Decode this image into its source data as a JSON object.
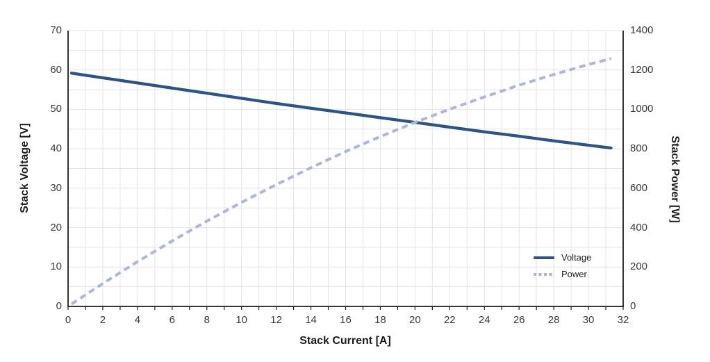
{
  "chart_data": {
    "type": "line",
    "title": "",
    "xlabel": "Stack Current [A]",
    "ylabel_left": "Stack Voltage [V]",
    "ylabel_right": "Stack Power [W]",
    "xlim": [
      0,
      32
    ],
    "xticks": [
      0,
      2,
      4,
      6,
      8,
      10,
      12,
      14,
      16,
      18,
      20,
      22,
      24,
      26,
      28,
      30,
      32
    ],
    "x_minor_grid_step": 1,
    "ylim_left": [
      0,
      70
    ],
    "yticks_left": [
      0,
      10,
      20,
      30,
      40,
      50,
      60,
      70
    ],
    "y_left_minor_grid_step": 5,
    "ylim_right": [
      0,
      1400
    ],
    "yticks_right": [
      0,
      200,
      400,
      600,
      800,
      1000,
      1200,
      1400
    ],
    "grid": true,
    "legend_position": "lower-right-inside",
    "x": [
      0.2,
      2,
      4,
      6,
      8,
      10,
      12,
      14,
      16,
      18,
      20,
      22,
      24,
      26,
      28,
      30,
      31.3
    ],
    "series": [
      {
        "name": "Voltage",
        "axis": "left",
        "line_style": "solid",
        "color": "#2e5389",
        "values": [
          59.2,
          58.0,
          56.7,
          55.4,
          54.1,
          52.8,
          51.5,
          50.3,
          49.1,
          47.9,
          46.7,
          45.5,
          44.3,
          43.2,
          42.0,
          40.9,
          40.2
        ]
      },
      {
        "name": "Power",
        "axis": "right",
        "line_style": "dashed",
        "color": "#a9b7db",
        "values": [
          12,
          116,
          227,
          332,
          433,
          528,
          618,
          704,
          786,
          862,
          934,
          1001,
          1063,
          1123,
          1177,
          1228,
          1258
        ]
      }
    ]
  },
  "colors": {
    "voltage_line": "#2e5389",
    "power_line": "#a9b7db",
    "grid": "#e4e4e6",
    "axis": "#1d1d1d",
    "tick_text": "#3a3a3a",
    "background": "#ffffff"
  }
}
